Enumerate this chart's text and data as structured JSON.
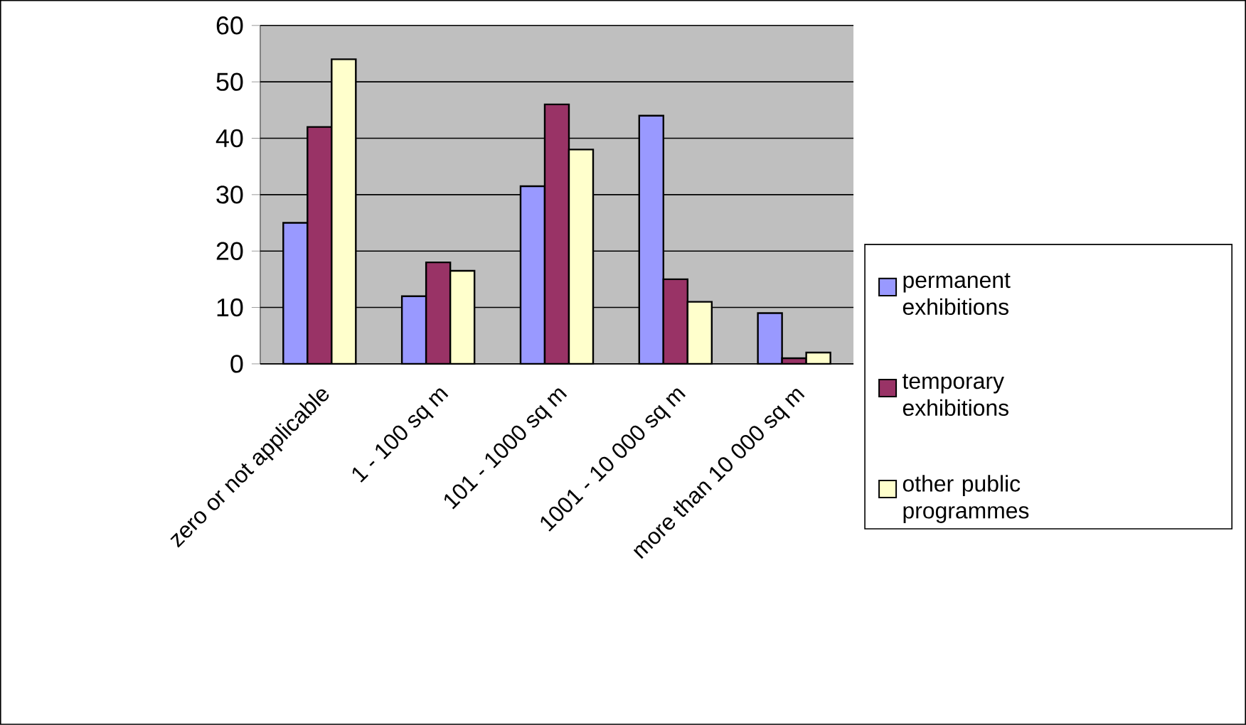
{
  "chart_data": {
    "type": "bar",
    "categories": [
      "zero or not applicable",
      "1 - 100 sq m",
      "101 - 1000 sq m",
      "1001 - 10 000  sq m",
      "more than 10 000  sq m"
    ],
    "series": [
      {
        "name": "permanent exhibitions",
        "color": "#9999ff",
        "values": [
          25,
          12,
          31.5,
          44,
          9
        ]
      },
      {
        "name": "temporary exhibitions",
        "color": "#993366",
        "values": [
          42,
          18,
          46,
          15,
          1
        ]
      },
      {
        "name": "other public programmes",
        "color": "#ffffcc",
        "values": [
          54,
          16.5,
          38,
          11,
          2
        ]
      }
    ],
    "ylim": [
      0,
      60
    ],
    "yticks": [
      0,
      10,
      20,
      30,
      40,
      50,
      60
    ],
    "grid": "y",
    "legend": "right"
  }
}
